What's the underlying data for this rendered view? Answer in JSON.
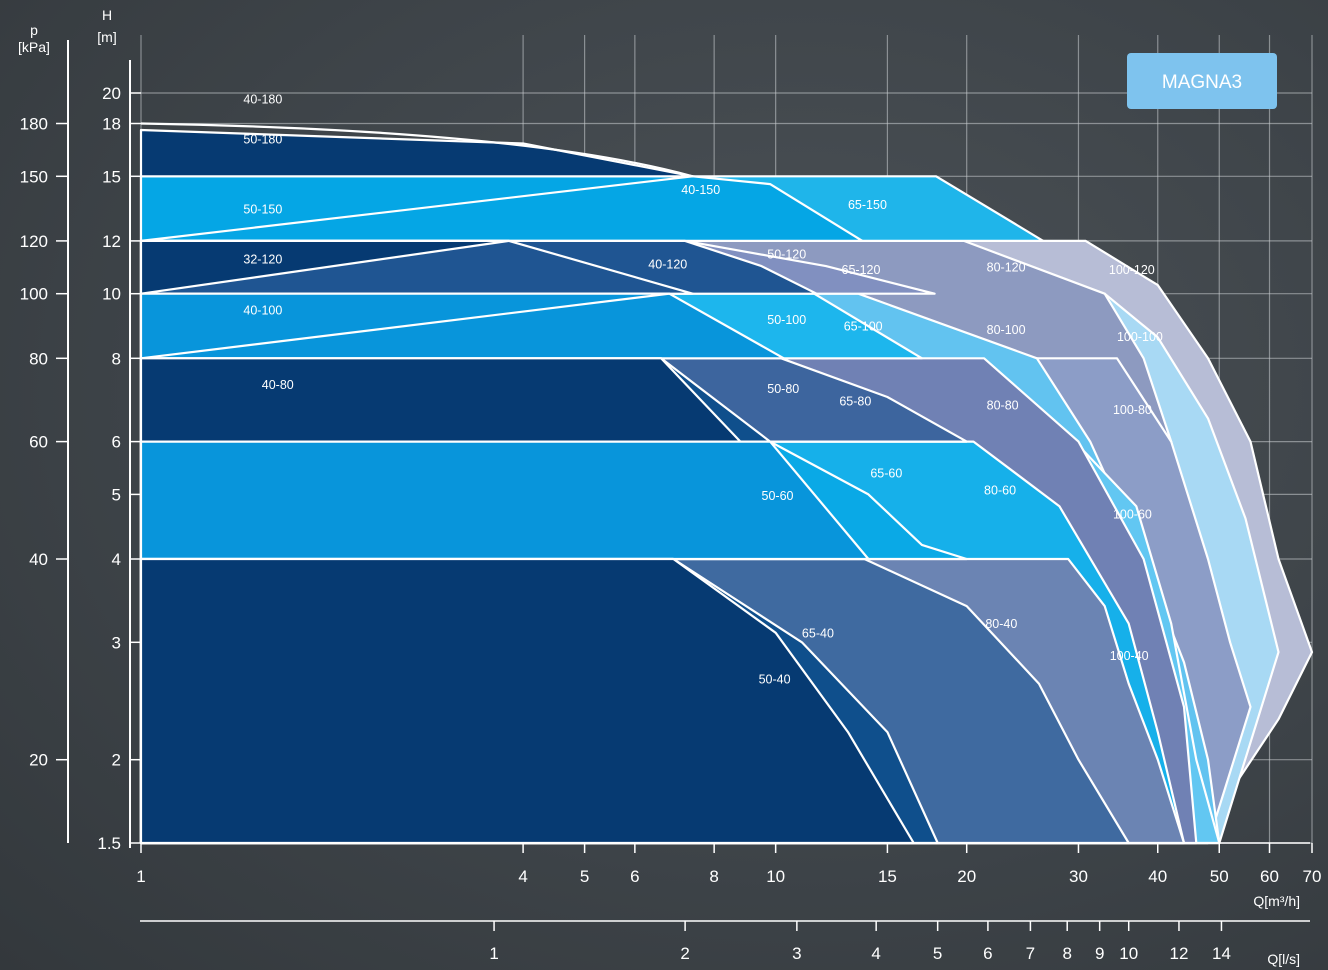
{
  "badge": "MAGNA3",
  "chart_data": {
    "type": "area",
    "title": "",
    "badge": "MAGNA3",
    "axes": {
      "p": {
        "label_line1": "p",
        "label_line2": "[kPa]",
        "ticks": [
          "180",
          "150",
          "120",
          "100",
          "80",
          "60",
          "40",
          "20"
        ],
        "tick_values": [
          180,
          150,
          120,
          100,
          80,
          60,
          40,
          20
        ]
      },
      "H": {
        "label_line1": "H",
        "label_line2": "[m]",
        "scale": "log",
        "range": [
          1.5,
          21
        ],
        "ticks": [
          "20",
          "18",
          "15",
          "12",
          "10",
          "8",
          "6",
          "5",
          "4",
          "3",
          "2",
          "1.5"
        ],
        "tick_values": [
          20,
          18,
          15,
          12,
          10,
          8,
          6,
          5,
          4,
          3,
          2,
          1.5
        ]
      },
      "Q_m3h": {
        "label": "Q[m³/h]",
        "scale": "log",
        "range": [
          1,
          70
        ],
        "ticks": [
          "1",
          "4",
          "5",
          "6",
          "8",
          "10",
          "15",
          "20",
          "30",
          "40",
          "50",
          "60",
          "70"
        ],
        "tick_values": [
          1,
          4,
          5,
          6,
          8,
          10,
          15,
          20,
          30,
          40,
          50,
          60,
          70
        ]
      },
      "Q_ls": {
        "label": "Q[l/s]",
        "ticks": [
          "1",
          "2",
          "3",
          "4",
          "5",
          "6",
          "7",
          "8",
          "9",
          "10",
          "12",
          "14"
        ],
        "tick_values": [
          1,
          2,
          3,
          4,
          5,
          6,
          7,
          8,
          9,
          10,
          12,
          14
        ]
      }
    },
    "grid": true,
    "regions": [
      {
        "name": "100-120",
        "color": "#b7bdd6",
        "h_top": 12,
        "q_start": 30.8,
        "points": [
          [
            1.0,
            12
          ],
          [
            30.8,
            12
          ],
          [
            40,
            10.3
          ],
          [
            48,
            8
          ],
          [
            56,
            6
          ],
          [
            62,
            4
          ],
          [
            70,
            2.9
          ],
          [
            62,
            2.3
          ],
          [
            46,
            1.5
          ],
          [
            1,
            1.5
          ]
        ]
      },
      {
        "name": "100-100",
        "color": "#a8d9f4",
        "h_top": 10,
        "q_start": 33,
        "points": [
          [
            1.0,
            10
          ],
          [
            33,
            10
          ],
          [
            40,
            8.6
          ],
          [
            48,
            6.5
          ],
          [
            55,
            4.6
          ],
          [
            62,
            2.9
          ],
          [
            50,
            1.5
          ],
          [
            1,
            1.5
          ]
        ]
      },
      {
        "name": "80-120",
        "color": "#8d9ac0",
        "h_top": 12,
        "q_start": 19.8,
        "points": [
          [
            1.0,
            12
          ],
          [
            19.8,
            12
          ],
          [
            33,
            10
          ],
          [
            38,
            8
          ],
          [
            42,
            6
          ],
          [
            46,
            4
          ],
          [
            48,
            3
          ],
          [
            52,
            2.4
          ],
          [
            48,
            1.5
          ],
          [
            1,
            1.5
          ]
        ]
      },
      {
        "name": "100-80",
        "color": "#8c9dc7",
        "h_top": 8,
        "q_start": 34.5,
        "points": [
          [
            1.0,
            8
          ],
          [
            34.5,
            8
          ],
          [
            42,
            6
          ],
          [
            48,
            4
          ],
          [
            52,
            3
          ],
          [
            56,
            2.4
          ],
          [
            48,
            1.5
          ],
          [
            1,
            1.5
          ]
        ]
      },
      {
        "name": "80-100",
        "color": "#62c3f0",
        "h_top": 10,
        "q_start": 13.5,
        "points": [
          [
            1.0,
            10
          ],
          [
            13.5,
            10
          ],
          [
            25.8,
            8
          ],
          [
            31.3,
            6
          ],
          [
            38,
            4
          ],
          [
            44,
            2.8
          ],
          [
            48,
            2
          ],
          [
            50,
            1.5
          ],
          [
            1,
            1.5
          ]
        ]
      },
      {
        "name": "100-60",
        "color": "#62c7f2",
        "h_top": 6,
        "q_start": 29.6,
        "points": [
          [
            1.0,
            6
          ],
          [
            29.6,
            6
          ],
          [
            37,
            4.8
          ],
          [
            42,
            3.2
          ],
          [
            46,
            2
          ],
          [
            50,
            1.5
          ],
          [
            1,
            1.5
          ]
        ]
      },
      {
        "name": "65-150",
        "color": "#1fb5ea",
        "h_top": 15,
        "q_start": 17.9,
        "points": [
          [
            1.0,
            15
          ],
          [
            17.9,
            15
          ],
          [
            26.4,
            12
          ],
          [
            13.7,
            12
          ],
          [
            10.6,
            12.3
          ],
          [
            7.6,
            14.1
          ],
          [
            1,
            15
          ]
        ]
      },
      {
        "name": "65-120",
        "color": "#8190c0",
        "h_top": 12,
        "q_start": 7.2,
        "points": [
          [
            1.0,
            12
          ],
          [
            7.2,
            12
          ],
          [
            12,
            11
          ],
          [
            17.8,
            10
          ],
          [
            11.5,
            10
          ],
          [
            1,
            12
          ]
        ]
      },
      {
        "name": "80-80",
        "color": "#7081b4",
        "h_top": 8,
        "q_start": 21.3,
        "points": [
          [
            1.0,
            8
          ],
          [
            21.3,
            8
          ],
          [
            30,
            6
          ],
          [
            38,
            4
          ],
          [
            44,
            2.4
          ],
          [
            46,
            1.5
          ],
          [
            1,
            1.5
          ]
        ]
      },
      {
        "name": "65-100",
        "color": "#1db6ed",
        "h_top": 10,
        "q_start": 11.5,
        "points": [
          [
            1.0,
            10
          ],
          [
            11.5,
            10
          ],
          [
            17,
            8
          ],
          [
            1,
            8
          ]
        ]
      },
      {
        "name": "80-60",
        "color": "#16b0ea",
        "h_top": 6,
        "q_start": 20.5,
        "points": [
          [
            1.0,
            6
          ],
          [
            20.5,
            6
          ],
          [
            28,
            4.8
          ],
          [
            36,
            3.2
          ],
          [
            40,
            2.2
          ],
          [
            44,
            1.5
          ],
          [
            1,
            1.5
          ]
        ]
      },
      {
        "name": "100-40",
        "color": "#6b84b3",
        "h_top": 4,
        "q_start": 28.9,
        "points": [
          [
            1.0,
            4
          ],
          [
            28.9,
            4
          ],
          [
            33,
            3.4
          ],
          [
            36,
            2.6
          ],
          [
            40,
            2
          ],
          [
            44,
            1.5
          ],
          [
            1,
            1.5
          ]
        ]
      },
      {
        "name": "65-80",
        "color": "#3d659e",
        "h_top": 8,
        "q_start": 10.2,
        "points": [
          [
            1.0,
            8
          ],
          [
            10.2,
            8
          ],
          [
            15,
            7
          ],
          [
            20,
            6
          ],
          [
            1,
            6
          ]
        ]
      },
      {
        "name": "80-40",
        "color": "#3f6aa0",
        "h_top": 4,
        "q_start": 13.8,
        "points": [
          [
            1.0,
            4
          ],
          [
            13.8,
            4
          ],
          [
            20,
            3.4
          ],
          [
            26,
            2.6
          ],
          [
            30,
            2
          ],
          [
            36,
            1.5
          ],
          [
            1,
            1.5
          ]
        ]
      },
      {
        "name": "65-60",
        "color": "#0aa9e6",
        "h_top": 6,
        "q_start": 9.8,
        "points": [
          [
            1.0,
            6
          ],
          [
            9.8,
            6
          ],
          [
            14,
            5
          ],
          [
            17,
            4.2
          ],
          [
            20,
            4
          ],
          [
            1,
            4
          ]
        ]
      },
      {
        "name": "40-150",
        "color": "#05a6e5",
        "h_top": 15,
        "q_start": 7.4,
        "points": [
          [
            1.0,
            15
          ],
          [
            7.4,
            15
          ],
          [
            9.8,
            14.6
          ],
          [
            13.7,
            12
          ],
          [
            1,
            12
          ]
        ]
      },
      {
        "name": "50-150",
        "color": "#05a6e5",
        "h_top": 15,
        "q_start": 1.0,
        "points": [
          [
            1,
            15
          ],
          [
            7.4,
            15
          ],
          [
            1,
            12
          ]
        ]
      },
      {
        "name": "50-120",
        "color": "#1f5592",
        "h_top": 12,
        "q_start": 7.2,
        "points": [
          [
            1.0,
            12
          ],
          [
            7.2,
            12
          ],
          [
            9.5,
            11
          ],
          [
            11.6,
            10
          ],
          [
            1,
            10
          ]
        ]
      },
      {
        "name": "40-120",
        "color": "#1f5592",
        "h_top": 12,
        "q_start": 3.8,
        "points": [
          [
            1.0,
            12
          ],
          [
            3.8,
            12
          ],
          [
            7.4,
            10
          ],
          [
            1,
            10
          ]
        ]
      },
      {
        "name": "32-120",
        "color": "#063a72",
        "h_top": 12,
        "q_start": 1.0,
        "points": [
          [
            1,
            12
          ],
          [
            3.8,
            12
          ],
          [
            1,
            10
          ]
        ]
      },
      {
        "name": "50-100",
        "color": "#0895db",
        "h_top": 10,
        "q_start": 6.8,
        "points": [
          [
            1.0,
            10
          ],
          [
            6.8,
            10
          ],
          [
            10.3,
            8
          ],
          [
            1,
            8
          ]
        ]
      },
      {
        "name": "40-100",
        "color": "#0895db",
        "h_top": 10,
        "q_start": 1.0,
        "points": [
          [
            1,
            10
          ],
          [
            6.8,
            10
          ],
          [
            1,
            8
          ]
        ]
      },
      {
        "name": "50-80",
        "color": "#0f4f8c",
        "h_top": 8,
        "q_start": 6.6,
        "points": [
          [
            1.0,
            8
          ],
          [
            6.6,
            8
          ],
          [
            9.8,
            6
          ],
          [
            1,
            6
          ]
        ]
      },
      {
        "name": "40-80",
        "color": "#063a72",
        "h_top": 8,
        "q_start": 1.0,
        "points": [
          [
            1,
            8
          ],
          [
            6.6,
            8
          ],
          [
            8.8,
            6
          ],
          [
            1,
            6
          ]
        ]
      },
      {
        "name": "50-60",
        "color": "#0895db",
        "h_top": 6,
        "q_start": 1.0,
        "points": [
          [
            1,
            6
          ],
          [
            9.8,
            6
          ],
          [
            14,
            4
          ],
          [
            1,
            4
          ]
        ]
      },
      {
        "name": "65-40",
        "color": "#0f4f8c",
        "h_top": 4,
        "q_start": 6.9,
        "points": [
          [
            1.0,
            4
          ],
          [
            6.9,
            4
          ],
          [
            11,
            3
          ],
          [
            15,
            2.2
          ],
          [
            18,
            1.5
          ],
          [
            1,
            1.5
          ]
        ]
      },
      {
        "name": "50-40",
        "color": "#063a72",
        "h_top": 4,
        "q_start": 1.0,
        "points": [
          [
            1,
            4
          ],
          [
            6.9,
            4
          ],
          [
            10,
            3.1
          ],
          [
            13,
            2.2
          ],
          [
            16.5,
            1.5
          ],
          [
            1,
            1.5
          ]
        ]
      },
      {
        "name": "50-180",
        "color": "#063a72",
        "h_top": 18,
        "q_start": 1.0,
        "points": [
          [
            1,
            17.6
          ],
          [
            4,
            16.8
          ],
          [
            7.4,
            15
          ],
          [
            1,
            15
          ]
        ]
      },
      {
        "name": "40-180",
        "color": "#ffffff",
        "h_top": 18,
        "q_start": 1.0,
        "points": []
      }
    ],
    "labels": [
      {
        "text": "40-180",
        "q": 1.45,
        "h": 19.3
      },
      {
        "text": "50-180",
        "q": 1.45,
        "h": 16.8
      },
      {
        "text": "50-150",
        "q": 1.45,
        "h": 13.2
      },
      {
        "text": "40-150",
        "q": 7.1,
        "h": 14.1
      },
      {
        "text": "65-150",
        "q": 13.0,
        "h": 13.4
      },
      {
        "text": "32-120",
        "q": 1.45,
        "h": 11.1
      },
      {
        "text": "40-120",
        "q": 6.3,
        "h": 10.9
      },
      {
        "text": "50-120",
        "q": 9.7,
        "h": 11.3
      },
      {
        "text": "65-120",
        "q": 12.7,
        "h": 10.7
      },
      {
        "text": "80-120",
        "q": 21.5,
        "h": 10.8
      },
      {
        "text": "100-120",
        "q": 33.5,
        "h": 10.7
      },
      {
        "text": "40-100",
        "q": 1.45,
        "h": 9.3
      },
      {
        "text": "50-100",
        "q": 9.7,
        "h": 9.0
      },
      {
        "text": "65-100",
        "q": 12.8,
        "h": 8.8
      },
      {
        "text": "80-100",
        "q": 21.5,
        "h": 8.7
      },
      {
        "text": "100-100",
        "q": 34.5,
        "h": 8.5
      },
      {
        "text": "40-80",
        "q": 1.55,
        "h": 7.2
      },
      {
        "text": "50-80",
        "q": 9.7,
        "h": 7.1
      },
      {
        "text": "65-80",
        "q": 12.6,
        "h": 6.8
      },
      {
        "text": "80-80",
        "q": 21.5,
        "h": 6.7
      },
      {
        "text": "100-80",
        "q": 34.0,
        "h": 6.6
      },
      {
        "text": "65-60",
        "q": 14.1,
        "h": 5.3
      },
      {
        "text": "50-60",
        "q": 9.5,
        "h": 4.9
      },
      {
        "text": "80-60",
        "q": 21.3,
        "h": 5.0
      },
      {
        "text": "100-60",
        "q": 34.0,
        "h": 4.6
      },
      {
        "text": "65-40",
        "q": 11.0,
        "h": 3.05
      },
      {
        "text": "80-40",
        "q": 21.4,
        "h": 3.15
      },
      {
        "text": "100-40",
        "q": 33.6,
        "h": 2.82
      },
      {
        "text": "50-40",
        "q": 9.4,
        "h": 2.6
      }
    ]
  }
}
